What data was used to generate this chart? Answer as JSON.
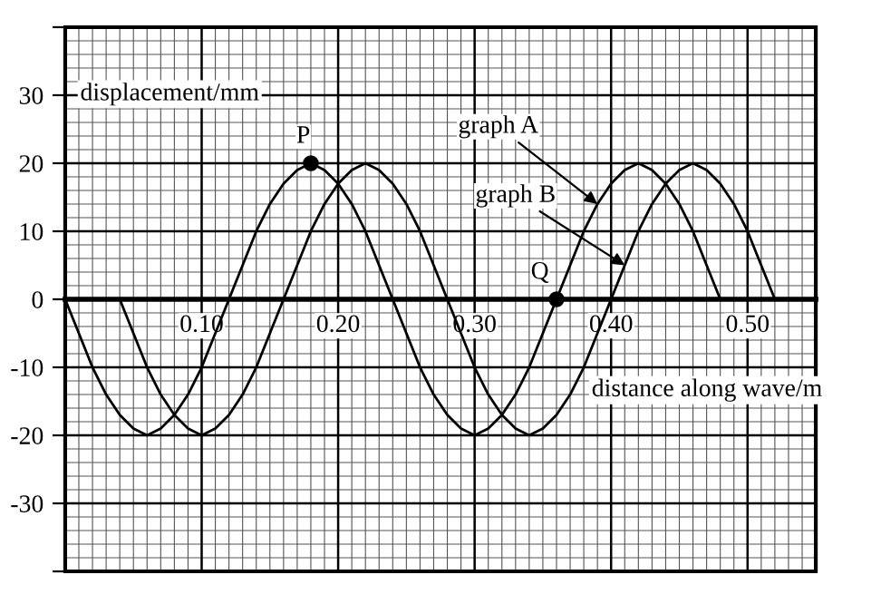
{
  "chart_data": {
    "type": "line",
    "xlabel": "distance along wave/m",
    "ylabel": "displacement/mm",
    "xlim": [
      0,
      0.55
    ],
    "ylim": [
      -40,
      40
    ],
    "xticks": [
      {
        "value": 0.1,
        "label": "0.10"
      },
      {
        "value": 0.2,
        "label": "0.20"
      },
      {
        "value": 0.3,
        "label": "0.30"
      },
      {
        "value": 0.4,
        "label": "0.40"
      },
      {
        "value": 0.5,
        "label": "0.50"
      }
    ],
    "yticks": [
      {
        "value": -40,
        "label": null
      },
      -30,
      -20,
      -10,
      0,
      10,
      20,
      30,
      {
        "value": 40,
        "label": null
      }
    ],
    "grid": true,
    "marker": "none",
    "line_style": "solid",
    "series": [
      {
        "name": "graph A",
        "color": "#000000",
        "x": [
          0,
          0.01,
          0.02,
          0.03,
          0.04,
          0.05,
          0.06,
          0.07,
          0.08,
          0.09,
          0.1,
          0.11,
          0.12,
          0.13,
          0.14,
          0.15,
          0.16,
          0.17,
          0.18,
          0.19,
          0.2,
          0.21,
          0.22,
          0.23,
          0.24,
          0.25,
          0.26,
          0.27,
          0.28,
          0.29,
          0.3,
          0.31,
          0.32,
          0.33,
          0.34,
          0.35,
          0.36,
          0.37,
          0.38,
          0.39,
          0.4,
          0.41,
          0.42,
          0.43,
          0.44,
          0.45,
          0.46,
          0.47,
          0.48
        ],
        "values": [
          0,
          -5,
          -10,
          -14,
          -17,
          -19,
          -20,
          -19,
          -17,
          -14,
          -10,
          -5,
          0,
          5,
          10,
          14,
          17,
          19,
          20,
          19,
          17,
          14,
          10,
          5,
          0,
          -5,
          -10,
          -14,
          -17,
          -19,
          -20,
          -19,
          -17,
          -14,
          -10,
          -5,
          0,
          5,
          10,
          14,
          17,
          19,
          20,
          19,
          17,
          14,
          10,
          5,
          0
        ]
      },
      {
        "name": "graph B",
        "color": "#000000",
        "x": [
          0.04,
          0.05,
          0.06,
          0.07,
          0.08,
          0.09,
          0.1,
          0.11,
          0.12,
          0.13,
          0.14,
          0.15,
          0.16,
          0.17,
          0.18,
          0.19,
          0.2,
          0.21,
          0.22,
          0.23,
          0.24,
          0.25,
          0.26,
          0.27,
          0.28,
          0.29,
          0.3,
          0.31,
          0.32,
          0.33,
          0.34,
          0.35,
          0.36,
          0.37,
          0.38,
          0.39,
          0.4,
          0.41,
          0.42,
          0.43,
          0.44,
          0.45,
          0.46,
          0.47,
          0.48,
          0.49,
          0.5,
          0.51,
          0.52
        ],
        "values": [
          0,
          -5,
          -10,
          -14,
          -17,
          -19,
          -20,
          -19,
          -17,
          -14,
          -10,
          -5,
          0,
          5,
          10,
          14,
          17,
          19,
          20,
          19,
          17,
          14,
          10,
          5,
          0,
          -5,
          -10,
          -14,
          -17,
          -19,
          -20,
          -19,
          -17,
          -14,
          -10,
          -5,
          0,
          5,
          10,
          14,
          17,
          19,
          20,
          19,
          17,
          14,
          10,
          5,
          0
        ]
      },
      {
        "type": "scatter",
        "marker": "circle",
        "color": "#000000",
        "x": [
          0.18,
          0.36
        ],
        "values": [
          20,
          0
        ]
      }
    ],
    "annotations": [
      {
        "text": "P",
        "x": 0.18,
        "y": 20
      },
      {
        "text": "Q",
        "x": 0.36,
        "y": 0
      }
    ]
  }
}
